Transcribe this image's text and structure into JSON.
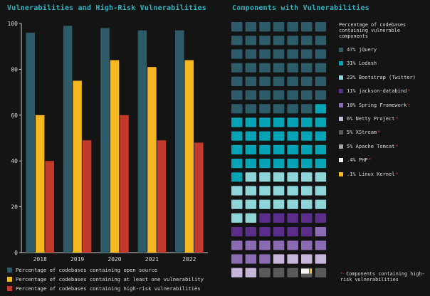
{
  "left_title": "Vulnerabilities and High-Risk Vulnerabilities",
  "right_title": "Components with Vulnerabilities",
  "chart_data": [
    {
      "type": "bar",
      "title": "Vulnerabilities and High-Risk Vulnerabilities",
      "categories": [
        "2018",
        "2019",
        "2020",
        "2021",
        "2022"
      ],
      "ylim": [
        0,
        100
      ],
      "yticks": [
        "0",
        "20",
        "40",
        "60",
        "80",
        "100"
      ],
      "series": [
        {
          "name": "Percentage of codebases containing open source",
          "color": "#2e5b68",
          "values": [
            96,
            99,
            98,
            97,
            97
          ]
        },
        {
          "name": "Percentage of codebases containing at least one vulnerability",
          "color": "#f5b821",
          "values": [
            60,
            75,
            84,
            81,
            84
          ]
        },
        {
          "name": "Percentage of codebases containing high-risk vulnerabilities",
          "color": "#c33a2c",
          "values": [
            40,
            49,
            60,
            49,
            48
          ]
        }
      ]
    },
    {
      "type": "waffle",
      "title": "Components with Vulnerabilities",
      "legend_title": "Percentage of codebases containing vulnerable components",
      "series": [
        {
          "name": "47% jQuery",
          "value": 47,
          "color": "#2e5b68",
          "high_risk": false
        },
        {
          "name": "31% Lodash",
          "value": 31,
          "color": "#04a3b5",
          "high_risk": false
        },
        {
          "name": "23% Bootstrap (Twitter)",
          "value": 23,
          "color": "#8fd4d6",
          "high_risk": false
        },
        {
          "name": "11% jackson-databind",
          "value": 11,
          "color": "#5a2e8a",
          "high_risk": true
        },
        {
          "name": "10% Spring Framework",
          "value": 10,
          "color": "#8b6bb3",
          "high_risk": true
        },
        {
          "name": "6% Netty Project",
          "value": 6,
          "color": "#c5b6da",
          "high_risk": true
        },
        {
          "name": "5% XStream",
          "value": 5,
          "color": "#5a5a5a",
          "high_risk": true
        },
        {
          "name": "5% Apache Tomcat",
          "value": 5,
          "color": "#a8a8a8",
          "high_risk": true
        },
        {
          "name": ".4% PHP",
          "value": 0.4,
          "color": "#f2f2f2",
          "high_risk": true
        },
        {
          "name": ".1% Linux Kernel",
          "value": 0.1,
          "color": "#f5b821",
          "high_risk": true
        }
      ],
      "note": "Components containing high-risk vulnerabilities",
      "note_marker": "*"
    }
  ]
}
